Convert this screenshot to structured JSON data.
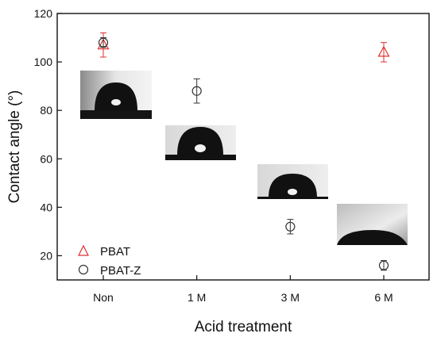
{
  "chart_data": {
    "type": "scatter",
    "categories": [
      "Non",
      "1 M",
      "3 M",
      "6 M"
    ],
    "xlabel": "Acid treatment",
    "ylabel": "Contact angle (°)",
    "ylim": [
      10,
      120
    ],
    "yticks": [
      20,
      40,
      60,
      80,
      100,
      120
    ],
    "grid": false,
    "legend_position": "bottom-left",
    "series": [
      {
        "name": "PBAT",
        "marker": "triangle",
        "color": "#e03030",
        "values": [
          107,
          null,
          null,
          104
        ],
        "errors": [
          5,
          null,
          null,
          4
        ]
      },
      {
        "name": "PBAT-Z",
        "marker": "circle",
        "color": "#333333",
        "values": [
          108,
          88,
          32,
          16
        ],
        "errors": [
          2,
          5,
          3,
          2
        ]
      }
    ]
  }
}
